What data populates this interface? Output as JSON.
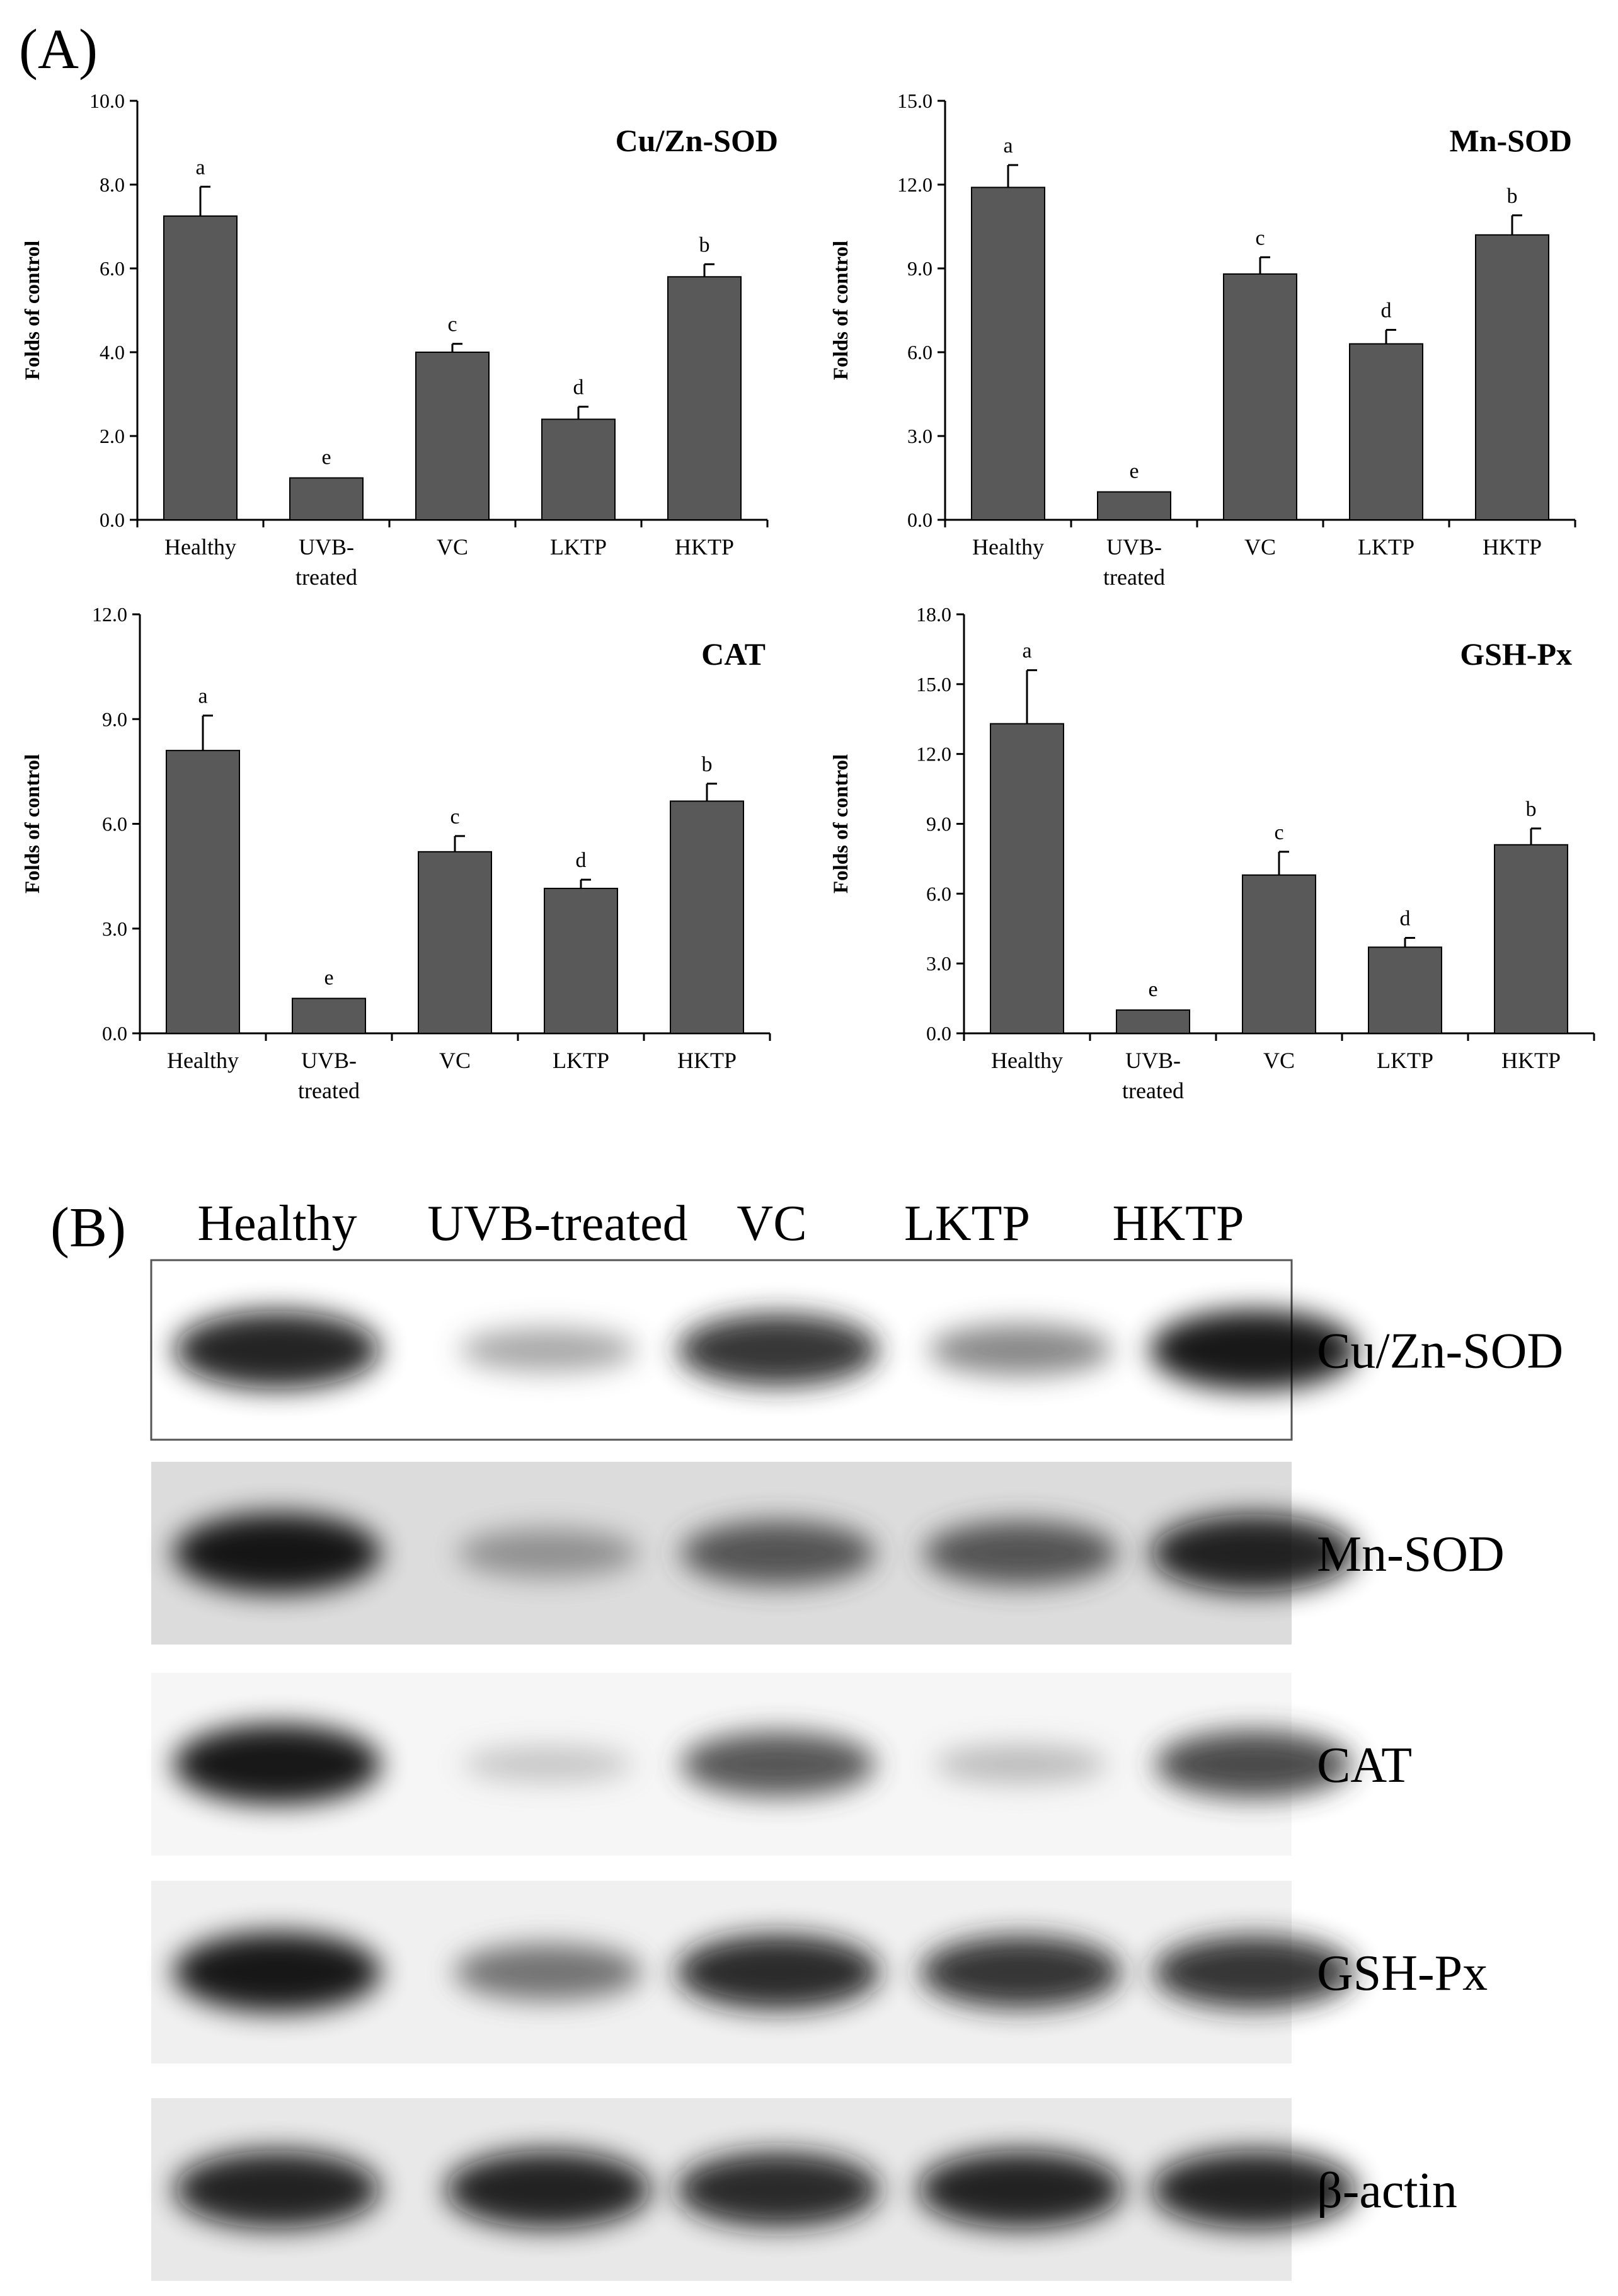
{
  "figure": {
    "panel_a_label": "(A)",
    "panel_b_label": "(B)"
  },
  "chart_data": [
    {
      "type": "bar",
      "title": "Cu/Zn-SOD",
      "ylabel": "Folds of control",
      "categories": [
        "Healthy",
        "UVB-|treated",
        "VC",
        "LKTP",
        "HKTP"
      ],
      "values": [
        7.25,
        1.0,
        4.0,
        2.4,
        5.8
      ],
      "errors": [
        0.7,
        0.0,
        0.2,
        0.3,
        0.3
      ],
      "significance": [
        "a",
        "e",
        "c",
        "d",
        "b"
      ],
      "ylim": [
        0,
        10
      ],
      "yticks": [
        "0.0",
        "2.0",
        "4.0",
        "6.0",
        "8.0",
        "10.0"
      ],
      "bar_color": "#595959"
    },
    {
      "type": "bar",
      "title": "Mn-SOD",
      "ylabel": "Folds of control",
      "categories": [
        "Healthy",
        "UVB-|treated",
        "VC",
        "LKTP",
        "HKTP"
      ],
      "values": [
        11.9,
        1.0,
        8.8,
        6.3,
        10.2
      ],
      "errors": [
        0.8,
        0.0,
        0.6,
        0.5,
        0.7
      ],
      "significance": [
        "a",
        "e",
        "c",
        "d",
        "b"
      ],
      "ylim": [
        0,
        15
      ],
      "yticks": [
        "0.0",
        "3.0",
        "6.0",
        "9.0",
        "12.0",
        "15.0"
      ],
      "bar_color": "#595959"
    },
    {
      "type": "bar",
      "title": "CAT",
      "ylabel": "Folds of control",
      "categories": [
        "Healthy",
        "UVB-|treated",
        "VC",
        "LKTP",
        "HKTP"
      ],
      "values": [
        8.1,
        1.0,
        5.2,
        4.15,
        6.65
      ],
      "errors": [
        1.0,
        0.0,
        0.45,
        0.25,
        0.5
      ],
      "significance": [
        "a",
        "e",
        "c",
        "d",
        "b"
      ],
      "ylim": [
        0,
        12
      ],
      "yticks": [
        "0.0",
        "3.0",
        "6.0",
        "9.0",
        "12.0"
      ],
      "bar_color": "#595959"
    },
    {
      "type": "bar",
      "title": "GSH-Px",
      "ylabel": "Folds of control",
      "categories": [
        "Healthy",
        "UVB-|treated",
        "VC",
        "LKTP",
        "HKTP"
      ],
      "values": [
        13.3,
        1.0,
        6.8,
        3.7,
        8.1
      ],
      "errors": [
        2.3,
        0.0,
        1.0,
        0.4,
        0.7
      ],
      "significance": [
        "a",
        "e",
        "c",
        "d",
        "b"
      ],
      "ylim": [
        0,
        18
      ],
      "yticks": [
        "0.0",
        "3.0",
        "6.0",
        "9.0",
        "12.0",
        "15.0",
        "18.0"
      ],
      "bar_color": "#595959"
    }
  ],
  "western_blot": {
    "lanes": [
      "Healthy",
      "UVB-treated",
      "VC",
      "LKTP",
      "HKTP"
    ],
    "bands": [
      {
        "name": "Cu/Zn-SOD",
        "background": "#ffffff",
        "intensity": [
          0.95,
          0.3,
          0.85,
          0.45,
          1.0
        ]
      },
      {
        "name": "Mn-SOD",
        "background": "#dcdcdc",
        "intensity": [
          1.0,
          0.4,
          0.7,
          0.7,
          0.95
        ]
      },
      {
        "name": "CAT",
        "background": "#f6f6f6",
        "intensity": [
          1.0,
          0.15,
          0.7,
          0.2,
          0.75
        ]
      },
      {
        "name": "GSH-Px",
        "background": "#f0f0f0",
        "intensity": [
          1.0,
          0.55,
          0.9,
          0.85,
          0.85
        ]
      },
      {
        "name": "β-actin",
        "background": "#e8e8e8",
        "intensity": [
          0.95,
          0.95,
          0.9,
          0.95,
          0.95
        ]
      }
    ]
  }
}
